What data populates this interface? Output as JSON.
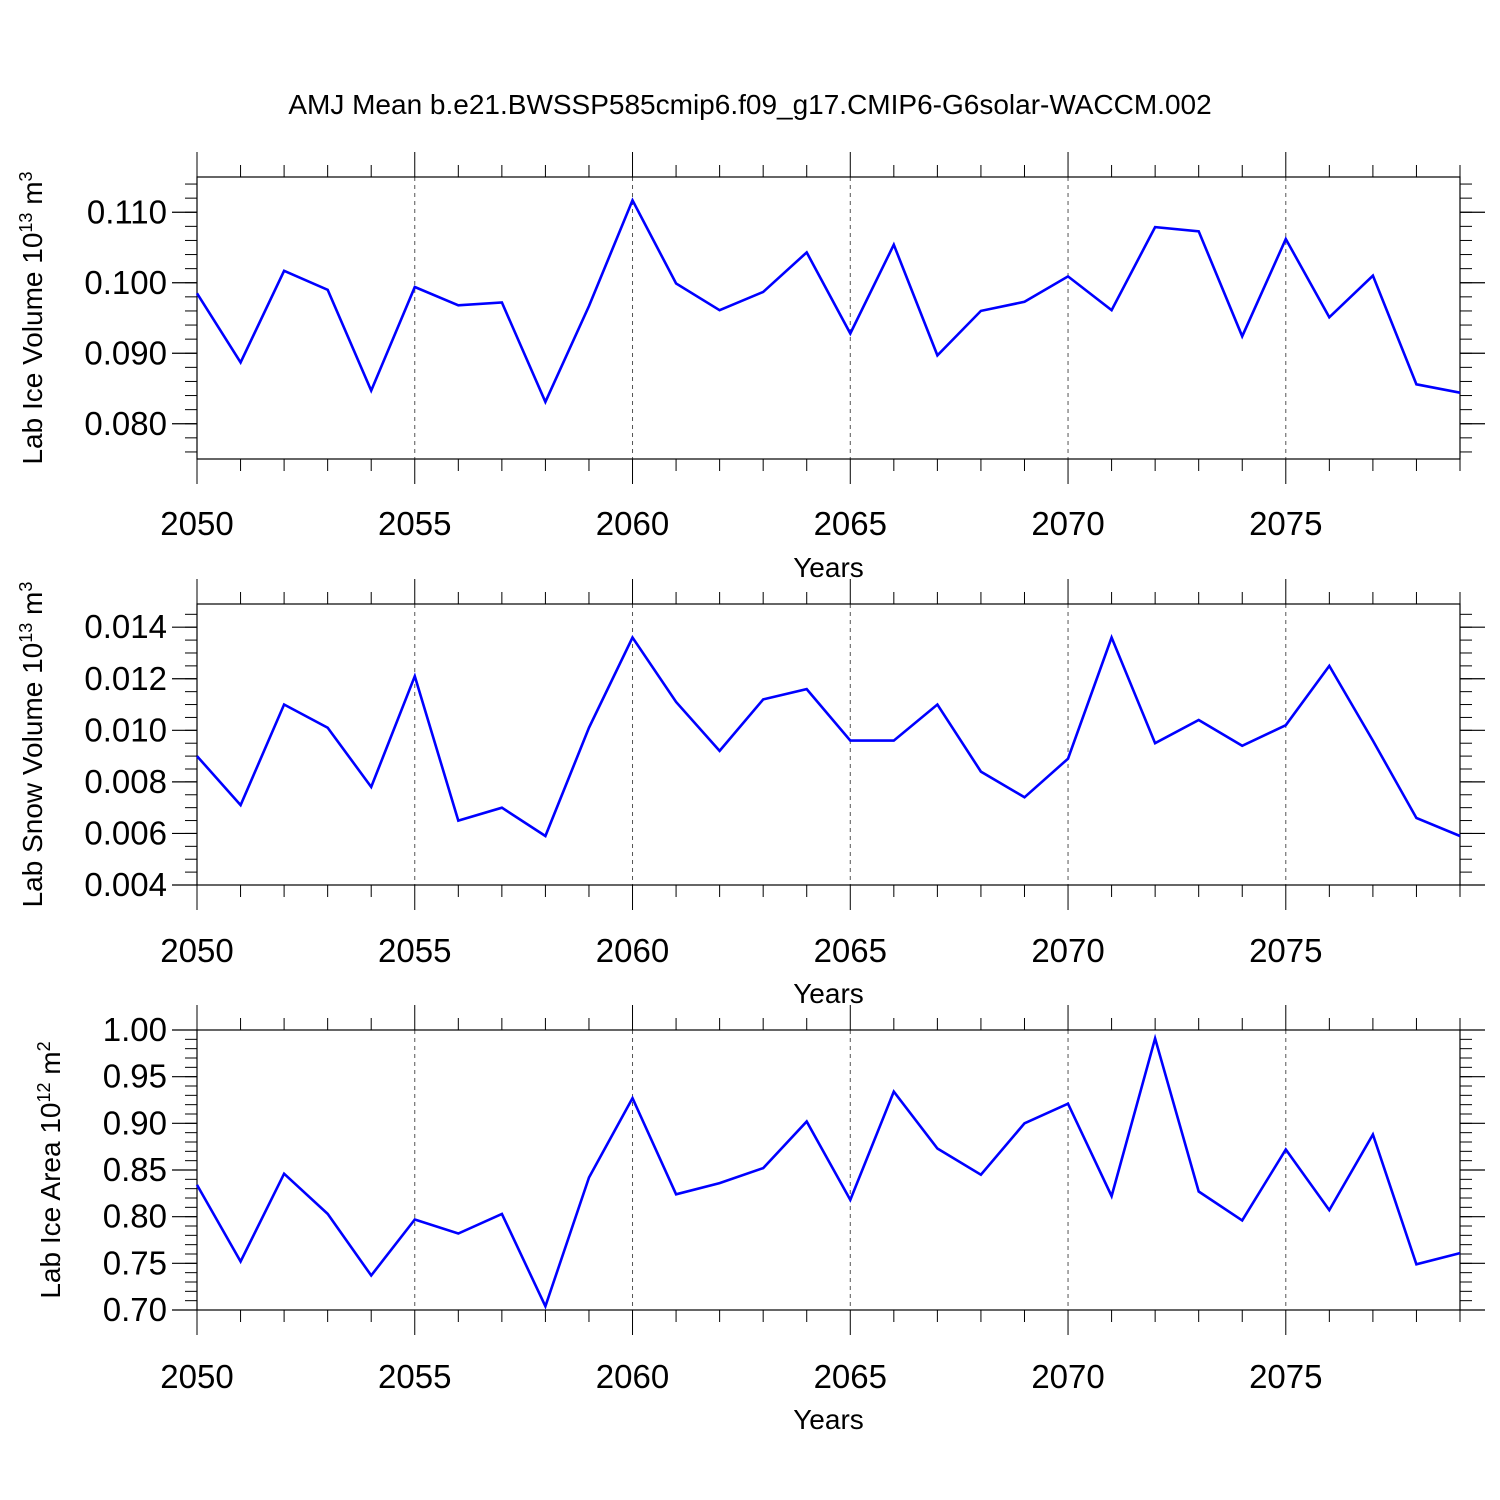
{
  "figure": {
    "title": "AMJ Mean b.e21.BWSSP585cmip6.f09_g17.CMIP6-G6solar-WACCM.002",
    "line_color": "#0000ff"
  },
  "chart_data": [
    {
      "type": "line",
      "title": "",
      "xlabel": "Years",
      "ylabel": {
        "main": "Lab Ice Volume 10",
        "exp": "13",
        "unit": " m",
        "unit_exp": "3"
      },
      "xlim": [
        2050,
        2079
      ],
      "ylim": [
        0.075,
        0.115
      ],
      "x_ticks": [
        2050,
        2055,
        2060,
        2065,
        2070,
        2075
      ],
      "x_tick_labels": [
        "2050",
        "2055",
        "2060",
        "2065",
        "2070",
        "2075"
      ],
      "y_ticks": [
        0.08,
        0.09,
        0.1,
        0.11
      ],
      "y_tick_labels": [
        "0.080",
        "0.090",
        "0.100",
        "0.110"
      ],
      "y_minor_step": 0.002,
      "grid": "vertical dashed at major x ticks",
      "series": [
        {
          "x": [
            2050,
            2051,
            2052,
            2053,
            2054,
            2055,
            2056,
            2057,
            2058,
            2059,
            2060,
            2061,
            2062,
            2063,
            2064,
            2065,
            2066,
            2067,
            2068,
            2069,
            2070,
            2071,
            2072,
            2073,
            2074,
            2075,
            2076,
            2077,
            2078,
            2079
          ],
          "values": [
            0.0985,
            0.0887,
            0.1017,
            0.099,
            0.0847,
            0.0994,
            0.0968,
            0.0972,
            0.0831,
            0.0967,
            0.1117,
            0.0999,
            0.0961,
            0.0987,
            0.1043,
            0.0928,
            0.1054,
            0.0897,
            0.096,
            0.0973,
            0.1009,
            0.0961,
            0.1079,
            0.1073,
            0.0924,
            0.1062,
            0.0951,
            0.101,
            0.0856,
            0.0844
          ]
        }
      ]
    },
    {
      "type": "line",
      "title": "",
      "xlabel": "Years",
      "ylabel": {
        "main": "Lab Snow Volume 10",
        "exp": "13",
        "unit": " m",
        "unit_exp": "3"
      },
      "xlim": [
        2050,
        2079
      ],
      "ylim": [
        0.004,
        0.0149
      ],
      "x_ticks": [
        2050,
        2055,
        2060,
        2065,
        2070,
        2075
      ],
      "x_tick_labels": [
        "2050",
        "2055",
        "2060",
        "2065",
        "2070",
        "2075"
      ],
      "y_ticks": [
        0.004,
        0.006,
        0.008,
        0.01,
        0.012,
        0.014
      ],
      "y_tick_labels": [
        "0.004",
        "0.006",
        "0.008",
        "0.010",
        "0.012",
        "0.014"
      ],
      "y_minor_step": 0.0005,
      "grid": "vertical dashed at major x ticks",
      "series": [
        {
          "x": [
            2050,
            2051,
            2052,
            2053,
            2054,
            2055,
            2056,
            2057,
            2058,
            2059,
            2060,
            2061,
            2062,
            2063,
            2064,
            2065,
            2066,
            2067,
            2068,
            2069,
            2070,
            2071,
            2072,
            2073,
            2074,
            2075,
            2076,
            2077,
            2078,
            2079
          ],
          "values": [
            0.009,
            0.0071,
            0.011,
            0.0101,
            0.0078,
            0.0121,
            0.0065,
            0.007,
            0.0059,
            0.0101,
            0.0136,
            0.0111,
            0.0092,
            0.0112,
            0.0116,
            0.0096,
            0.0096,
            0.011,
            0.0084,
            0.0074,
            0.0089,
            0.0136,
            0.0095,
            0.0104,
            0.0094,
            0.0102,
            0.0125,
            0.0096,
            0.0066,
            0.0059
          ]
        }
      ]
    },
    {
      "type": "line",
      "title": "",
      "xlabel": "Years",
      "ylabel": {
        "main": "Lab Ice Area 10",
        "exp": "12",
        "unit": " m",
        "unit_exp": "2"
      },
      "xlim": [
        2050,
        2079
      ],
      "ylim": [
        0.7,
        1.0
      ],
      "x_ticks": [
        2050,
        2055,
        2060,
        2065,
        2070,
        2075
      ],
      "x_tick_labels": [
        "2050",
        "2055",
        "2060",
        "2065",
        "2070",
        "2075"
      ],
      "y_ticks": [
        0.7,
        0.75,
        0.8,
        0.85,
        0.9,
        0.95,
        1.0
      ],
      "y_tick_labels": [
        "0.70",
        "0.75",
        "0.80",
        "0.85",
        "0.90",
        "0.95",
        "1.00"
      ],
      "y_minor_step": 0.01,
      "grid": "vertical dashed at major x ticks",
      "series": [
        {
          "x": [
            2050,
            2051,
            2052,
            2053,
            2054,
            2055,
            2056,
            2057,
            2058,
            2059,
            2060,
            2061,
            2062,
            2063,
            2064,
            2065,
            2066,
            2067,
            2068,
            2069,
            2070,
            2071,
            2072,
            2073,
            2074,
            2075,
            2076,
            2077,
            2078,
            2079
          ],
          "values": [
            0.834,
            0.752,
            0.846,
            0.803,
            0.737,
            0.797,
            0.782,
            0.803,
            0.704,
            0.842,
            0.927,
            0.824,
            0.836,
            0.852,
            0.902,
            0.818,
            0.934,
            0.873,
            0.845,
            0.9,
            0.921,
            0.822,
            0.991,
            0.827,
            0.796,
            0.872,
            0.807,
            0.888,
            0.749,
            0.761
          ]
        }
      ]
    }
  ]
}
